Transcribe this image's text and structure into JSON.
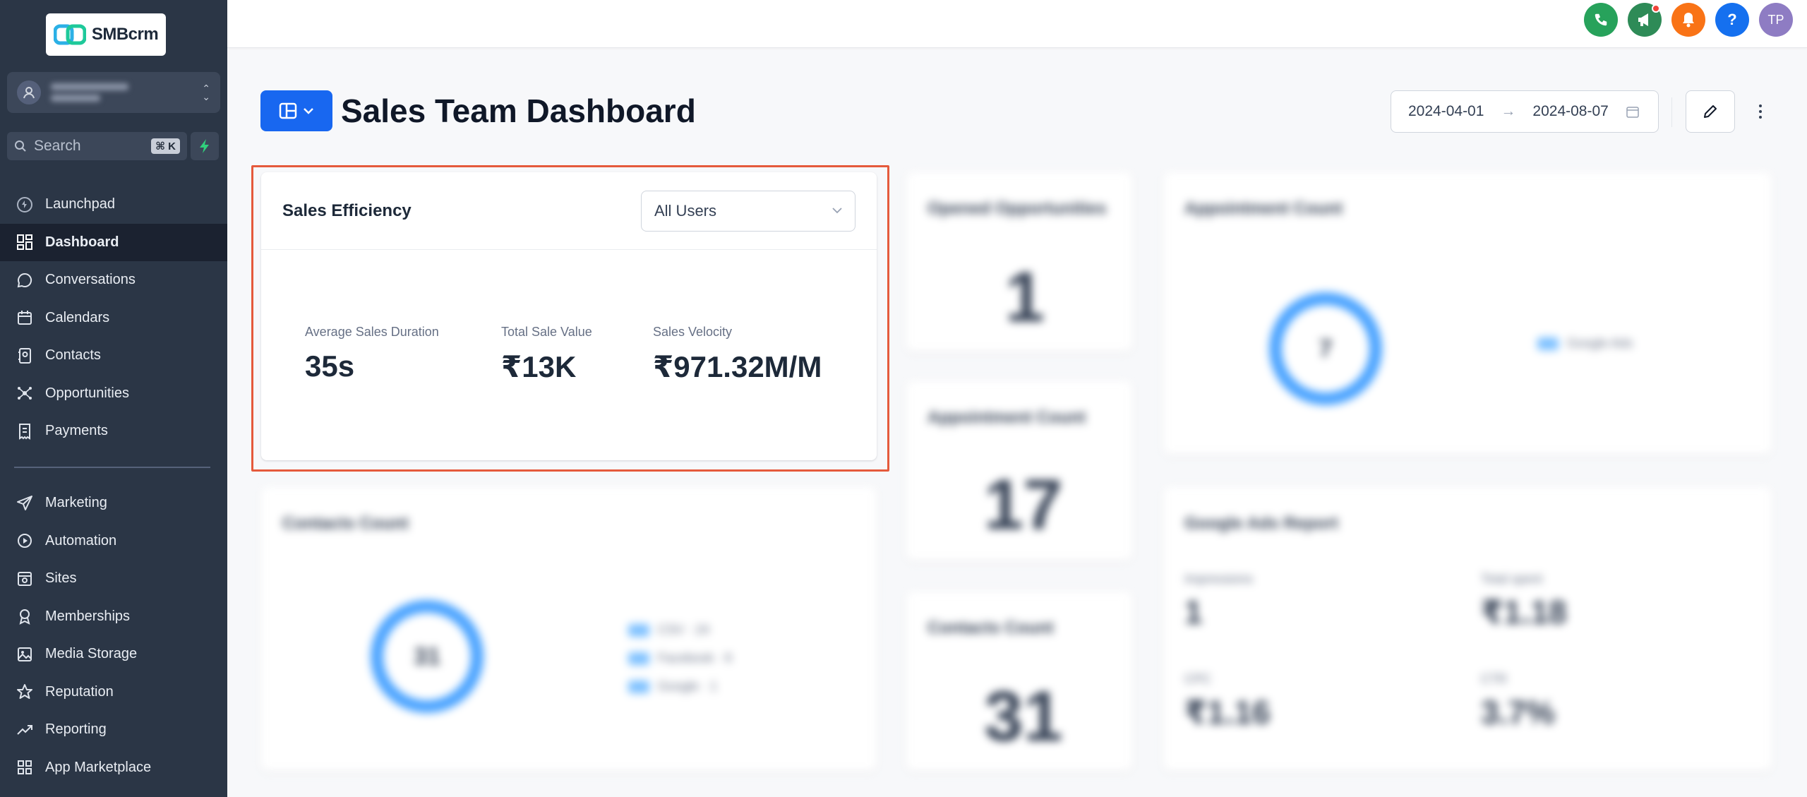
{
  "sidebar": {
    "logo_text": "SMBcrm",
    "search_placeholder": "Search",
    "search_shortcut": "⌘ K",
    "items": [
      {
        "label": "Launchpad",
        "icon": "launchpad-icon"
      },
      {
        "label": "Dashboard",
        "icon": "dashboard-icon",
        "active": true
      },
      {
        "label": "Conversations",
        "icon": "chat-bubble-icon"
      },
      {
        "label": "Calendars",
        "icon": "calendar-icon"
      },
      {
        "label": "Contacts",
        "icon": "contacts-icon"
      },
      {
        "label": "Opportunities",
        "icon": "opportunities-icon"
      },
      {
        "label": "Payments",
        "icon": "payments-icon"
      }
    ],
    "items2": [
      {
        "label": "Marketing",
        "icon": "send-icon"
      },
      {
        "label": "Automation",
        "icon": "automation-icon"
      },
      {
        "label": "Sites",
        "icon": "sites-icon"
      },
      {
        "label": "Memberships",
        "icon": "membership-icon"
      },
      {
        "label": "Media Storage",
        "icon": "image-icon"
      },
      {
        "label": "Reputation",
        "icon": "star-icon"
      },
      {
        "label": "Reporting",
        "icon": "trend-icon"
      },
      {
        "label": "App Marketplace",
        "icon": "grid-icon"
      }
    ]
  },
  "topbar": {
    "avatar_initials": "TP",
    "help_label": "?",
    "colors": {
      "phone": "#27a25b",
      "announce": "#2e8b57",
      "bell": "#f97316",
      "help": "#1570ef",
      "avatar": "#8e7cc3"
    }
  },
  "header": {
    "title": "Sales Team Dashboard",
    "date_start": "2024-04-01",
    "date_end": "2024-08-07"
  },
  "sales_efficiency": {
    "title": "Sales Efficiency",
    "user_filter": "All Users",
    "metrics": [
      {
        "label": "Average Sales Duration",
        "value": "35s"
      },
      {
        "label": "Total Sale Value",
        "value": "₹13K"
      },
      {
        "label": "Sales Velocity",
        "value": "₹971.32M/M"
      }
    ]
  },
  "blurred_widgets": {
    "opened_opps": {
      "title": "Opened Opportunities",
      "value": "1"
    },
    "appointment_count_small": {
      "title": "Appointment Count",
      "value": "17"
    },
    "contacts_count_small": {
      "title": "Contacts Count",
      "value": "31"
    },
    "appointment_count_donut": {
      "title": "Appointment Count",
      "center": "7",
      "legend": "Google Ads"
    },
    "contacts_count_donut": {
      "title": "Contacts Count",
      "center": "31",
      "legend": [
        "CSV · 24",
        "Facebook · 6",
        "Google · 1"
      ]
    },
    "google_ads": {
      "title": "Google Ads Report",
      "stats": [
        {
          "label": "Impressions",
          "value": "1"
        },
        {
          "label": "Total spent",
          "value": "₹1.18"
        },
        {
          "label": "CPC",
          "value": "₹1.16"
        },
        {
          "label": "CTR",
          "value": "3.7%"
        }
      ]
    }
  }
}
